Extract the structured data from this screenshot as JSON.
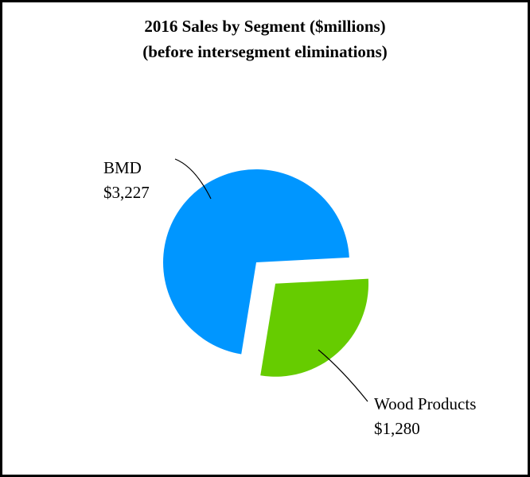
{
  "chart_data": {
    "type": "pie",
    "title": "2016 Sales by Segment ($millions)",
    "subtitle": "(before intersegment eliminations)",
    "categories": [
      "BMD",
      "Wood Products"
    ],
    "values": [
      3227,
      1280
    ],
    "value_labels": [
      "$3,227",
      "$1,280"
    ],
    "colors": [
      "#0096ff",
      "#66cc00"
    ]
  }
}
